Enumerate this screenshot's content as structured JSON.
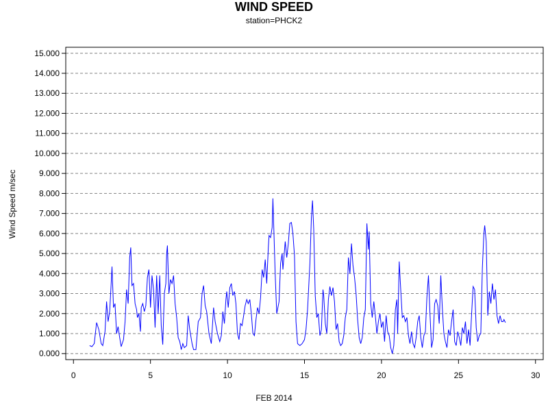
{
  "chart_data": {
    "type": "line",
    "title": "WIND SPEED",
    "subtitle": "station=PHCK2",
    "xlabel": "FEB 2014",
    "ylabel": "Wind Speed m/sec",
    "xlim": [
      -0.5,
      30.5
    ],
    "ylim": [
      -0.3,
      15.3
    ],
    "x_ticks": [
      0,
      5,
      10,
      15,
      20,
      25,
      30
    ],
    "x_tick_labels": [
      "0",
      "5",
      "10",
      "15",
      "20",
      "25",
      "30"
    ],
    "y_ticks": [
      0,
      1,
      2,
      3,
      4,
      5,
      6,
      7,
      8,
      9,
      10,
      11,
      12,
      13,
      14,
      15
    ],
    "y_tick_labels": [
      "0.000",
      "1.000",
      "2.000",
      "3.000",
      "4.000",
      "5.000",
      "6.000",
      "7.000",
      "8.000",
      "9.000",
      "10.000",
      "11.000",
      "12.000",
      "13.000",
      "14.000",
      "15.000"
    ],
    "grid": "horizontal dashed",
    "line_color": "#0000ff",
    "series": [
      {
        "values": [
          [
            1.05,
            0.4
          ],
          [
            1.2,
            0.35
          ],
          [
            1.35,
            0.5
          ],
          [
            1.5,
            1.55
          ],
          [
            1.65,
            1.2
          ],
          [
            1.8,
            0.5
          ],
          [
            1.9,
            0.4
          ],
          [
            2.05,
            1.1
          ],
          [
            2.15,
            2.6
          ],
          [
            2.25,
            1.6
          ],
          [
            2.35,
            2.1
          ],
          [
            2.45,
            3.5
          ],
          [
            2.5,
            4.35
          ],
          [
            2.6,
            2.3
          ],
          [
            2.7,
            2.5
          ],
          [
            2.8,
            1.0
          ],
          [
            2.9,
            1.35
          ],
          [
            3.0,
            0.8
          ],
          [
            3.1,
            0.35
          ],
          [
            3.25,
            0.7
          ],
          [
            3.35,
            1.6
          ],
          [
            3.45,
            3.2
          ],
          [
            3.55,
            2.5
          ],
          [
            3.65,
            4.8
          ],
          [
            3.72,
            5.3
          ],
          [
            3.8,
            3.4
          ],
          [
            3.9,
            3.5
          ],
          [
            4.0,
            2.5
          ],
          [
            4.1,
            2.2
          ],
          [
            4.15,
            1.8
          ],
          [
            4.25,
            2.0
          ],
          [
            4.35,
            1.1
          ],
          [
            4.4,
            2.3
          ],
          [
            4.5,
            2.5
          ],
          [
            4.6,
            2.1
          ],
          [
            4.7,
            2.4
          ],
          [
            4.8,
            3.8
          ],
          [
            4.9,
            4.2
          ],
          [
            5.0,
            2.3
          ],
          [
            5.1,
            3.9
          ],
          [
            5.2,
            3.2
          ],
          [
            5.3,
            1.3
          ],
          [
            5.4,
            3.9
          ],
          [
            5.5,
            2.0
          ],
          [
            5.6,
            3.9
          ],
          [
            5.7,
            1.4
          ],
          [
            5.8,
            0.45
          ],
          [
            5.9,
            3.0
          ],
          [
            6.0,
            3.5
          ],
          [
            6.05,
            5.0
          ],
          [
            6.1,
            5.4
          ],
          [
            6.2,
            3.0
          ],
          [
            6.3,
            3.7
          ],
          [
            6.4,
            3.5
          ],
          [
            6.5,
            3.9
          ],
          [
            6.6,
            2.5
          ],
          [
            6.7,
            1.8
          ],
          [
            6.8,
            0.8
          ],
          [
            6.9,
            0.6
          ],
          [
            7.0,
            0.2
          ],
          [
            7.1,
            0.5
          ],
          [
            7.2,
            0.3
          ],
          [
            7.35,
            0.4
          ],
          [
            7.45,
            1.9
          ],
          [
            7.55,
            1.2
          ],
          [
            7.7,
            0.5
          ],
          [
            7.8,
            0.2
          ],
          [
            7.95,
            0.2
          ],
          [
            8.1,
            1.6
          ],
          [
            8.25,
            1.8
          ],
          [
            8.35,
            3.0
          ],
          [
            8.45,
            3.4
          ],
          [
            8.55,
            2.4
          ],
          [
            8.65,
            2.1
          ],
          [
            8.8,
            1.0
          ],
          [
            8.95,
            0.5
          ],
          [
            9.1,
            2.3
          ],
          [
            9.2,
            1.6
          ],
          [
            9.35,
            1.0
          ],
          [
            9.5,
            0.6
          ],
          [
            9.6,
            0.9
          ],
          [
            9.7,
            2.1
          ],
          [
            9.8,
            1.5
          ],
          [
            9.9,
            2.7
          ],
          [
            9.95,
            3.1
          ],
          [
            10.05,
            2.3
          ],
          [
            10.15,
            3.3
          ],
          [
            10.25,
            3.5
          ],
          [
            10.35,
            2.9
          ],
          [
            10.45,
            3.1
          ],
          [
            10.55,
            2.5
          ],
          [
            10.65,
            1.0
          ],
          [
            10.75,
            0.7
          ],
          [
            10.85,
            1.5
          ],
          [
            10.95,
            1.4
          ],
          [
            11.05,
            1.9
          ],
          [
            11.15,
            2.4
          ],
          [
            11.25,
            2.7
          ],
          [
            11.35,
            2.5
          ],
          [
            11.45,
            2.7
          ],
          [
            11.55,
            2.0
          ],
          [
            11.65,
            1.0
          ],
          [
            11.75,
            0.9
          ],
          [
            11.85,
            1.7
          ],
          [
            11.95,
            2.3
          ],
          [
            12.05,
            2.0
          ],
          [
            12.15,
            2.8
          ],
          [
            12.25,
            4.2
          ],
          [
            12.35,
            3.8
          ],
          [
            12.45,
            4.7
          ],
          [
            12.55,
            3.5
          ],
          [
            12.65,
            5.3
          ],
          [
            12.7,
            5.9
          ],
          [
            12.8,
            5.8
          ],
          [
            12.9,
            6.3
          ],
          [
            12.95,
            7.75
          ],
          [
            13.0,
            6.5
          ],
          [
            13.1,
            3.9
          ],
          [
            13.2,
            2.0
          ],
          [
            13.35,
            2.6
          ],
          [
            13.45,
            4.5
          ],
          [
            13.55,
            5.0
          ],
          [
            13.6,
            4.2
          ],
          [
            13.75,
            5.6
          ],
          [
            13.85,
            4.8
          ],
          [
            13.95,
            5.5
          ],
          [
            14.05,
            6.5
          ],
          [
            14.15,
            6.55
          ],
          [
            14.25,
            6.0
          ],
          [
            14.35,
            4.9
          ],
          [
            14.45,
            1.6
          ],
          [
            14.55,
            0.5
          ],
          [
            14.7,
            0.4
          ],
          [
            14.85,
            0.5
          ],
          [
            15.0,
            0.7
          ],
          [
            15.1,
            1.2
          ],
          [
            15.2,
            2.2
          ],
          [
            15.35,
            4.5
          ],
          [
            15.45,
            6.8
          ],
          [
            15.52,
            7.65
          ],
          [
            15.6,
            6.2
          ],
          [
            15.7,
            2.9
          ],
          [
            15.8,
            1.8
          ],
          [
            15.9,
            2.0
          ],
          [
            16.0,
            0.9
          ],
          [
            16.1,
            1.2
          ],
          [
            16.2,
            3.2
          ],
          [
            16.25,
            2.9
          ],
          [
            16.35,
            1.5
          ],
          [
            16.45,
            1.0
          ],
          [
            16.55,
            2.7
          ],
          [
            16.65,
            3.35
          ],
          [
            16.75,
            2.9
          ],
          [
            16.85,
            3.3
          ],
          [
            16.95,
            2.6
          ],
          [
            17.05,
            1.2
          ],
          [
            17.15,
            1.5
          ],
          [
            17.25,
            0.6
          ],
          [
            17.35,
            0.4
          ],
          [
            17.45,
            0.5
          ],
          [
            17.55,
            0.9
          ],
          [
            17.65,
            1.8
          ],
          [
            17.75,
            2.2
          ],
          [
            17.85,
            4.8
          ],
          [
            17.95,
            4.0
          ],
          [
            18.05,
            5.5
          ],
          [
            18.15,
            4.4
          ],
          [
            18.25,
            3.8
          ],
          [
            18.35,
            3.0
          ],
          [
            18.45,
            1.7
          ],
          [
            18.55,
            0.8
          ],
          [
            18.65,
            0.5
          ],
          [
            18.75,
            0.8
          ],
          [
            18.85,
            1.8
          ],
          [
            18.95,
            2.2
          ],
          [
            19.05,
            6.5
          ],
          [
            19.15,
            5.2
          ],
          [
            19.2,
            6.1
          ],
          [
            19.3,
            2.5
          ],
          [
            19.4,
            1.8
          ],
          [
            19.5,
            2.6
          ],
          [
            19.6,
            1.9
          ],
          [
            19.7,
            1.0
          ],
          [
            19.8,
            1.6
          ],
          [
            19.9,
            2.0
          ],
          [
            20.0,
            1.3
          ],
          [
            20.1,
            1.6
          ],
          [
            20.2,
            0.6
          ],
          [
            20.3,
            1.9
          ],
          [
            20.4,
            1.1
          ],
          [
            20.5,
            0.9
          ],
          [
            20.6,
            0.3
          ],
          [
            20.7,
            0.0
          ],
          [
            20.8,
            0.4
          ],
          [
            20.9,
            2.2
          ],
          [
            21.0,
            2.7
          ],
          [
            21.05,
            1.0
          ],
          [
            21.15,
            4.6
          ],
          [
            21.25,
            3.2
          ],
          [
            21.35,
            1.8
          ],
          [
            21.45,
            1.9
          ],
          [
            21.55,
            1.6
          ],
          [
            21.65,
            1.8
          ],
          [
            21.75,
            0.9
          ],
          [
            21.85,
            0.5
          ],
          [
            21.95,
            1.1
          ],
          [
            22.05,
            0.5
          ],
          [
            22.15,
            0.3
          ],
          [
            22.25,
            0.8
          ],
          [
            22.35,
            1.6
          ],
          [
            22.45,
            1.9
          ],
          [
            22.55,
            0.8
          ],
          [
            22.65,
            0.3
          ],
          [
            22.75,
            0.9
          ],
          [
            22.85,
            1.1
          ],
          [
            22.95,
            2.8
          ],
          [
            23.05,
            3.9
          ],
          [
            23.15,
            2.0
          ],
          [
            23.25,
            0.3
          ],
          [
            23.35,
            0.7
          ],
          [
            23.45,
            2.5
          ],
          [
            23.55,
            2.7
          ],
          [
            23.65,
            2.4
          ],
          [
            23.75,
            1.5
          ],
          [
            23.85,
            3.9
          ],
          [
            23.95,
            2.3
          ],
          [
            24.05,
            1.0
          ],
          [
            24.15,
            0.6
          ],
          [
            24.25,
            0.3
          ],
          [
            24.35,
            1.2
          ],
          [
            24.45,
            0.9
          ],
          [
            24.55,
            1.6
          ],
          [
            24.65,
            2.2
          ],
          [
            24.75,
            0.6
          ],
          [
            24.85,
            0.4
          ],
          [
            24.95,
            1.1
          ],
          [
            25.05,
            0.8
          ],
          [
            25.15,
            0.4
          ],
          [
            25.25,
            1.3
          ],
          [
            25.35,
            1.0
          ],
          [
            25.45,
            1.6
          ],
          [
            25.55,
            0.5
          ],
          [
            25.65,
            1.2
          ],
          [
            25.75,
            0.4
          ],
          [
            25.85,
            2.0
          ],
          [
            25.95,
            3.35
          ],
          [
            26.05,
            3.2
          ],
          [
            26.15,
            1.3
          ],
          [
            26.25,
            0.6
          ],
          [
            26.35,
            0.9
          ],
          [
            26.45,
            1.0
          ],
          [
            26.55,
            4.3
          ],
          [
            26.65,
            6.0
          ],
          [
            26.7,
            6.4
          ],
          [
            26.8,
            5.6
          ],
          [
            26.9,
            1.9
          ],
          [
            27.0,
            3.1
          ],
          [
            27.1,
            2.5
          ],
          [
            27.2,
            3.5
          ],
          [
            27.3,
            2.7
          ],
          [
            27.4,
            3.2
          ],
          [
            27.5,
            1.9
          ],
          [
            27.6,
            1.5
          ],
          [
            27.7,
            1.9
          ],
          [
            27.8,
            1.6
          ],
          [
            27.9,
            1.6
          ],
          [
            27.95,
            1.7
          ],
          [
            28.05,
            1.55
          ]
        ]
      }
    ]
  }
}
